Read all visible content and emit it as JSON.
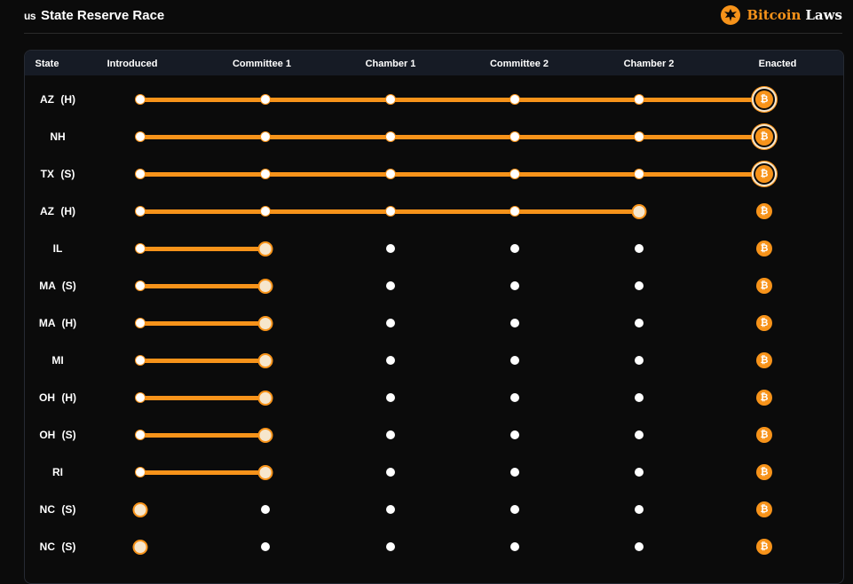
{
  "header": {
    "flag": "us",
    "title": "State Reserve Race",
    "brand_part1": "Bitcoin",
    "brand_part2": "Laws"
  },
  "table": {
    "columns": [
      "State",
      "Introduced",
      "Committee 1",
      "Chamber 1",
      "Committee 2",
      "Chamber 2",
      "Enacted"
    ],
    "btc_symbol": "₿",
    "rows": [
      {
        "state": "AZ (H)",
        "progress_stage": 6
      },
      {
        "state": "NH",
        "progress_stage": 6
      },
      {
        "state": "TX (S)",
        "progress_stage": 6
      },
      {
        "state": "AZ (H)",
        "progress_stage": 5
      },
      {
        "state": "IL",
        "progress_stage": 2
      },
      {
        "state": "MA (S)",
        "progress_stage": 2
      },
      {
        "state": "MA (H)",
        "progress_stage": 2
      },
      {
        "state": "MI",
        "progress_stage": 2
      },
      {
        "state": "OH (H)",
        "progress_stage": 2
      },
      {
        "state": "OH (S)",
        "progress_stage": 2
      },
      {
        "state": "RI",
        "progress_stage": 2
      },
      {
        "state": "NC (S)",
        "progress_stage": 1
      },
      {
        "state": "NC (S)",
        "progress_stage": 1
      }
    ]
  },
  "colors": {
    "accent": "#f7931a",
    "background": "#0b0b0b",
    "header_bg": "#161b25"
  }
}
